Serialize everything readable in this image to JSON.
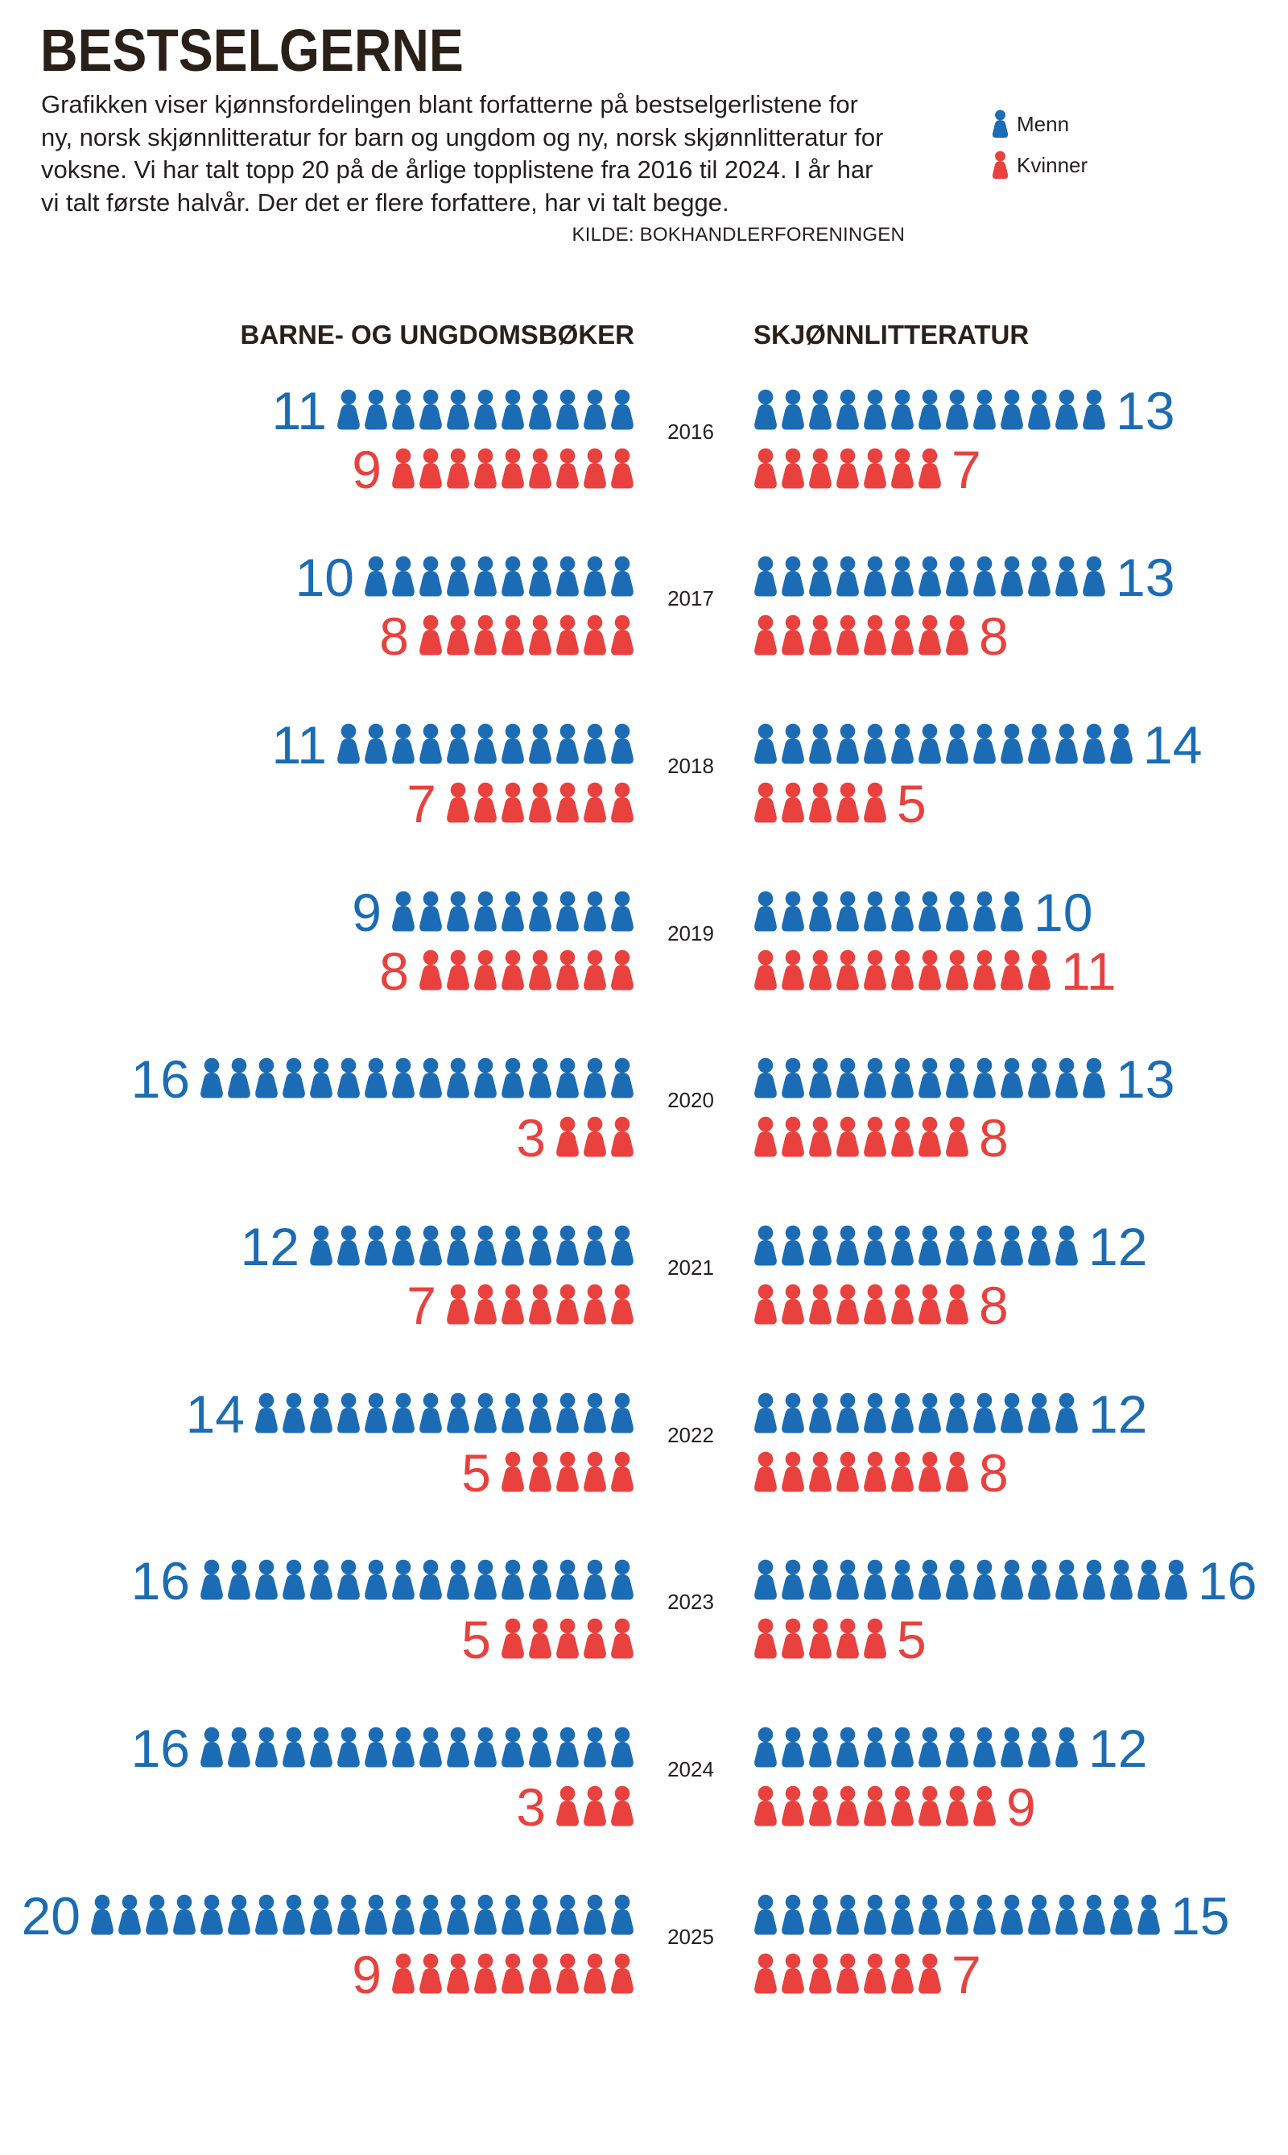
{
  "chart_data": {
    "type": "bar",
    "orientation": "horizontal",
    "title": "BESTSELGERNE",
    "subtitle": [
      "Grafikken viser kjønnsfordelingen blant forfatterne på bestselgerlistene for",
      "ny, norsk skjønnlitteratur for barn og ungdom og ny, norsk skjønnlitteratur for",
      "voksne. Vi har talt topp 20 på de årlige topplistene fra 2016 til 2024. I år har",
      "vi talt første halvår. Der det er flere forfattere, har vi talt begge."
    ],
    "source": "KILDE: BOKHANDLERFORENINGEN",
    "legend": {
      "position": "top-right"
    },
    "grid": false,
    "series": [
      {
        "name": "Menn",
        "color": "#1b6cb4",
        "icon": "person-icon"
      },
      {
        "name": "Kvinner",
        "color": "#e8413e",
        "icon": "person-icon"
      }
    ],
    "categories": [
      "2016",
      "2017",
      "2018",
      "2019",
      "2020",
      "2021",
      "2022",
      "2023",
      "2024",
      "2025"
    ],
    "panels": [
      {
        "title": "BARNE- OG UNGDOMSBØKER",
        "values": {
          "Menn": [
            11,
            10,
            11,
            9,
            16,
            12,
            14,
            16,
            16,
            20
          ],
          "Kvinner": [
            9,
            8,
            7,
            8,
            3,
            7,
            5,
            5,
            3,
            9
          ]
        }
      },
      {
        "title": "SKJØNNLITTERATUR",
        "values": {
          "Menn": [
            13,
            13,
            14,
            10,
            13,
            12,
            12,
            16,
            12,
            15
          ],
          "Kvinner": [
            7,
            8,
            5,
            11,
            8,
            8,
            8,
            5,
            9,
            7
          ]
        }
      }
    ]
  },
  "colors": {
    "heading": "#2a2018",
    "text": "#231f20",
    "background": "#ffffff"
  }
}
